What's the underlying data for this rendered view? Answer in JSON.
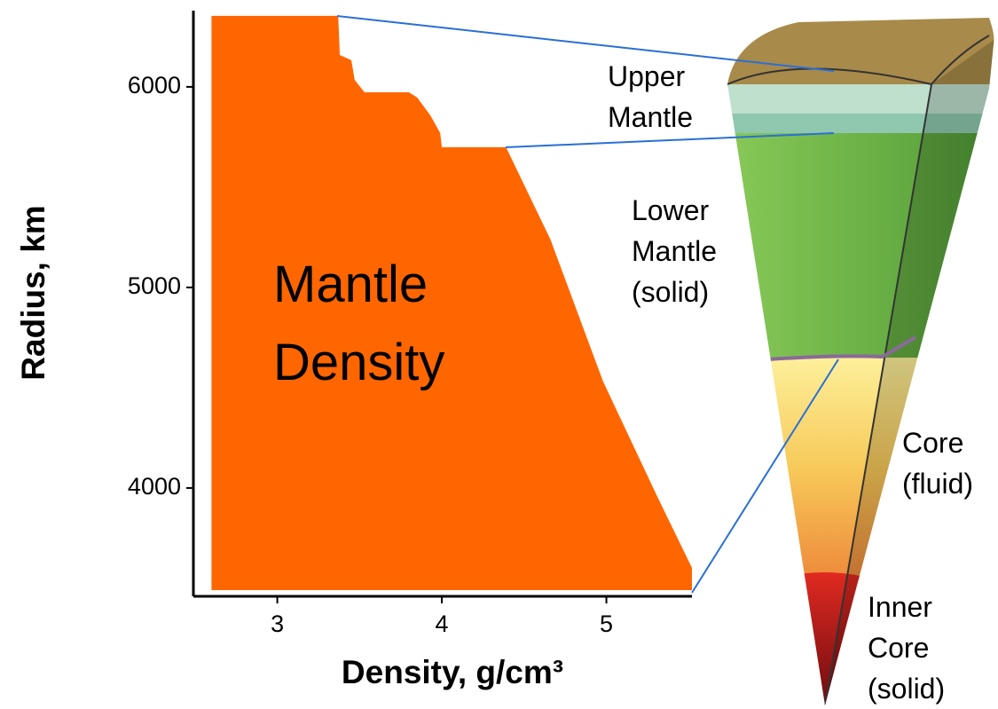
{
  "chart_data": {
    "type": "area",
    "x_label": "Density, g/cm³",
    "y_label": "Radius, km",
    "annotation": [
      "Mantle",
      "Density"
    ],
    "color": "#ff6600",
    "x": [
      2.6,
      3.37,
      3.38,
      3.45,
      3.47,
      3.53,
      3.8,
      3.85,
      3.93,
      3.99,
      4.0,
      4.39,
      4.66,
      4.98,
      5.31,
      5.52,
      5.52,
      2.6
    ],
    "y": [
      6354,
      6354,
      6159,
      6133,
      6035,
      5973,
      5973,
      5947,
      5858,
      5770,
      5699,
      5699,
      5239,
      4531,
      3956,
      3602,
      3491,
      3491
    ],
    "xlim": [
      2.49,
      5.52
    ],
    "ylim": [
      3460,
      6380
    ],
    "xticks": [
      3,
      4,
      5
    ],
    "yticks": [
      4000,
      5000,
      6000
    ]
  },
  "diagram": {
    "labels": [
      [
        "Upper",
        "Mantle"
      ],
      [
        "Lower",
        "Mantle",
        "(solid)"
      ],
      [
        "Core",
        "(fluid)"
      ],
      [
        "Inner",
        "Core",
        "(solid)"
      ]
    ]
  }
}
